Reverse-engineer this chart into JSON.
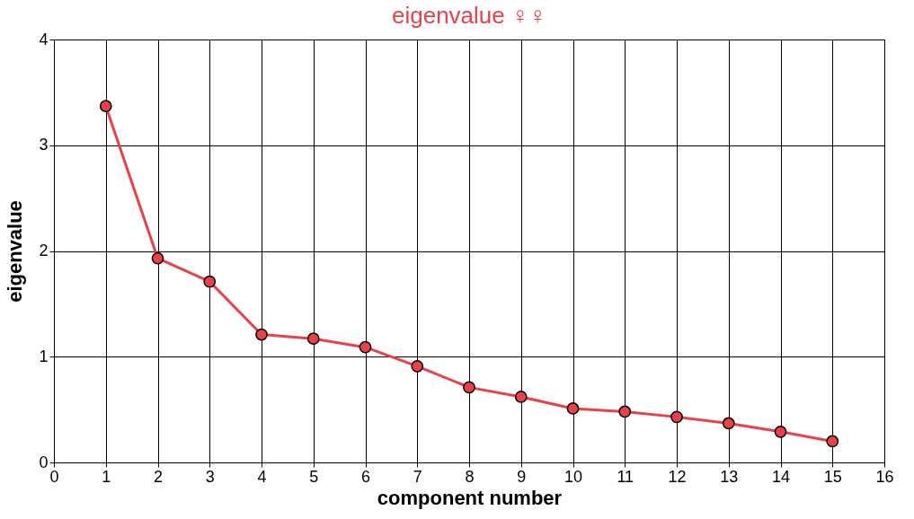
{
  "chart_data": {
    "type": "line",
    "title": "eigenvalue ♀♀",
    "xlabel": "component number",
    "ylabel": "eigenvalue",
    "x": [
      1,
      2,
      3,
      4,
      5,
      6,
      7,
      8,
      9,
      10,
      11,
      12,
      13,
      14,
      15
    ],
    "series": [
      {
        "color": "#e8414a",
        "values": [
          3.37,
          1.93,
          1.71,
          1.21,
          1.17,
          1.09,
          0.91,
          0.71,
          0.62,
          0.51,
          0.48,
          0.43,
          0.37,
          0.29,
          0.2
        ]
      }
    ],
    "xlim": [
      0,
      16
    ],
    "xticks": [
      0,
      1,
      2,
      3,
      4,
      5,
      6,
      7,
      8,
      9,
      10,
      11,
      12,
      13,
      14,
      15,
      16
    ],
    "ylim": [
      0,
      4
    ],
    "yticks": [
      0,
      1,
      2,
      3,
      4
    ],
    "grid": true,
    "marker": "circle",
    "line_style": "solid"
  }
}
